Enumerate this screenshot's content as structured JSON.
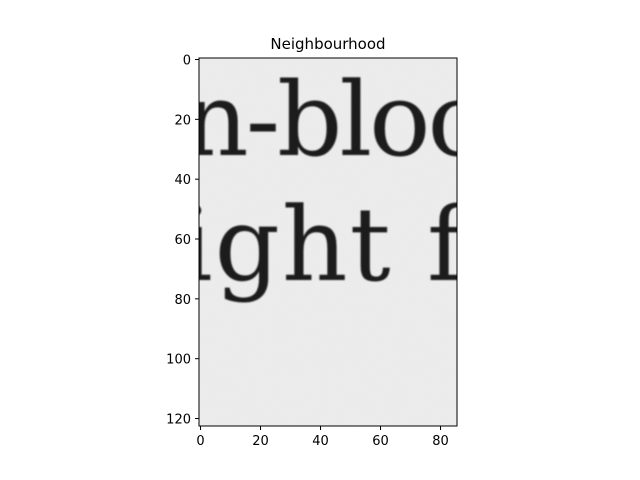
{
  "chart_data": {
    "type": "heatmap",
    "title": "Neighbourhood",
    "colormap": "gray",
    "xlim": [
      -0.5,
      85.5
    ],
    "ylim": [
      122.5,
      -0.5
    ],
    "x_ticks": [
      0,
      20,
      40,
      60,
      80
    ],
    "y_ticks": [
      0,
      20,
      40,
      60,
      80,
      100,
      120
    ],
    "image_text": {
      "line1": "n-bloc",
      "line2": "ight f"
    },
    "colors": {
      "paper": "#eeeeee",
      "ink": "#1c1c1c",
      "frame": "#000000"
    }
  }
}
